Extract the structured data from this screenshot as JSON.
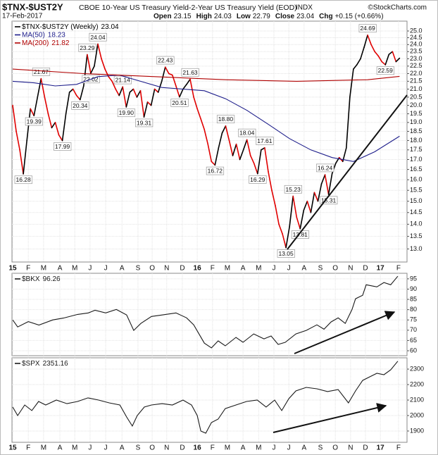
{
  "chart_data": [
    {
      "type": "line",
      "title": "$TNX-$UST2Y",
      "subtitle": "CBOE 10-Year US Treasury Yield-2-Year US Treasury Yield (EOD)",
      "exchange": "INDX",
      "source": "©StockCharts.com",
      "date": "17-Feb-2017",
      "quote": [
        {
          "label": "Open",
          "value": 23.15
        },
        {
          "label": "High",
          "value": 24.03
        },
        {
          "label": "Low",
          "value": 22.79
        },
        {
          "label": "Close",
          "value": 23.04
        },
        {
          "label": "Chg",
          "value": "+0.15 (+0.66%)"
        }
      ],
      "xlim": [
        -0.2,
        111.1
      ],
      "xticks": [
        {
          "value": 0,
          "label": "15"
        },
        {
          "value": 4.4,
          "label": "F"
        },
        {
          "value": 8.7,
          "label": "M"
        },
        {
          "value": 13.3,
          "label": "A"
        },
        {
          "value": 17.5,
          "label": "M"
        },
        {
          "value": 21.8,
          "label": "J"
        },
        {
          "value": 26.2,
          "label": "J"
        },
        {
          "value": 30.8,
          "label": "A"
        },
        {
          "value": 35.3,
          "label": "S"
        },
        {
          "value": 39.3,
          "label": "O"
        },
        {
          "value": 43.4,
          "label": "N"
        },
        {
          "value": 47.8,
          "label": "D"
        },
        {
          "value": 52.0,
          "label": "16"
        },
        {
          "value": 56.3,
          "label": "F"
        },
        {
          "value": 60.5,
          "label": "M"
        },
        {
          "value": 64.9,
          "label": "A"
        },
        {
          "value": 69.3,
          "label": "M"
        },
        {
          "value": 73.6,
          "label": "J"
        },
        {
          "value": 77.8,
          "label": "J"
        },
        {
          "value": 82.1,
          "label": "A"
        },
        {
          "value": 86.7,
          "label": "S"
        },
        {
          "value": 90.9,
          "label": "O"
        },
        {
          "value": 95.2,
          "label": "N"
        },
        {
          "value": 99.4,
          "label": "D"
        },
        {
          "value": 103.6,
          "label": "17"
        },
        {
          "value": 108.7,
          "label": "F"
        }
      ],
      "ylog": true,
      "ylim": [
        12.5,
        25.75
      ],
      "yticks": [
        {
          "value": 13,
          "label": "13.0"
        },
        13.5,
        {
          "value": 14,
          "label": "14.0"
        },
        14.5,
        {
          "value": 15,
          "label": "15.0"
        },
        15.5,
        {
          "value": 16,
          "label": "16.0"
        },
        16.5,
        {
          "value": 17,
          "label": "17.0"
        },
        17.5,
        {
          "value": 18,
          "label": "18.0"
        },
        18.5,
        {
          "value": 19,
          "label": "19.0"
        },
        19.5,
        {
          "value": 20,
          "label": "20.0"
        },
        20.5,
        {
          "value": 21,
          "label": "21.0"
        },
        21.5,
        {
          "value": 22,
          "label": "22.0"
        },
        22.5,
        {
          "value": 23,
          "label": "23.0"
        },
        23.5,
        {
          "value": 24,
          "label": "24.0"
        },
        24.5,
        {
          "value": 25,
          "label": "25.0"
        }
      ],
      "grid": true,
      "legend": "top-left",
      "series": [
        {
          "name": "$TNX-$UST2Y (Weekly)",
          "color": "#000000",
          "up_color": "#000000",
          "down_color": "#e00000",
          "values": [
            20.0,
            18.5,
            17.5,
            16.28,
            18.0,
            19.8,
            19.39,
            20.5,
            21.67,
            20.5,
            19.5,
            18.7,
            19.0,
            18.3,
            17.99,
            19.5,
            20.8,
            21.0,
            20.6,
            20.34,
            21.2,
            23.29,
            22.02,
            22.5,
            24.04,
            23.0,
            22.3,
            21.8,
            21.5,
            21.0,
            20.6,
            21.14,
            19.9,
            20.8,
            21.0,
            20.5,
            20.9,
            19.31,
            20.2,
            20.0,
            21.0,
            20.8,
            21.5,
            22.43,
            22.0,
            21.9,
            21.2,
            20.51,
            21.0,
            21.3,
            21.63,
            20.5,
            19.8,
            19.2,
            18.6,
            17.8,
            16.9,
            16.72,
            17.6,
            18.4,
            18.8,
            18.0,
            17.2,
            17.8,
            17.0,
            17.5,
            18.04,
            17.2,
            16.8,
            16.29,
            17.5,
            17.61,
            16.4,
            15.5,
            14.8,
            14.0,
            13.6,
            13.05,
            13.9,
            15.23,
            14.3,
            13.81,
            14.6,
            15.0,
            14.5,
            15.4,
            15.0,
            15.8,
            16.24,
            15.31,
            16.3,
            16.8,
            17.1,
            16.9,
            17.6,
            20.5,
            22.3,
            22.6,
            23.0,
            23.8,
            24.69,
            24.0,
            23.5,
            23.2,
            22.8,
            22.59,
            23.3,
            23.5,
            22.8,
            23.04
          ],
          "value_labels": [
            null,
            null,
            null,
            "16.28",
            null,
            null,
            "19.39",
            null,
            "21.67",
            null,
            null,
            null,
            null,
            null,
            "17.99",
            null,
            null,
            null,
            null,
            "20.34",
            null,
            "23.29",
            "22.02",
            null,
            "24.04",
            null,
            null,
            null,
            null,
            null,
            null,
            "21.14",
            "19.90",
            null,
            null,
            null,
            null,
            "19.31",
            null,
            null,
            null,
            null,
            null,
            "22.43",
            null,
            null,
            null,
            "20.51",
            null,
            null,
            "21.63",
            null,
            null,
            null,
            null,
            null,
            null,
            "16.72",
            null,
            null,
            "18.80",
            null,
            null,
            null,
            null,
            null,
            "18.04",
            null,
            null,
            "16.29",
            null,
            "17.61",
            null,
            null,
            null,
            null,
            null,
            "13.05",
            null,
            "15.23",
            null,
            "13.81",
            null,
            null,
            null,
            null,
            null,
            null,
            "16.24",
            "15.31",
            null,
            null,
            null,
            null,
            null,
            null,
            null,
            null,
            null,
            null,
            "24.69",
            null,
            null,
            null,
            null,
            "22.59",
            null,
            null,
            null,
            null
          ]
        },
        {
          "name": "MA(50)",
          "color": "#1c1c8a",
          "x": [
            0,
            6,
            12,
            18,
            24,
            30,
            36,
            42,
            48,
            54,
            60,
            66,
            72,
            78,
            84,
            90,
            96,
            102,
            109
          ],
          "values": [
            21.5,
            21.4,
            21.2,
            21.3,
            21.8,
            21.9,
            21.5,
            21.1,
            21.0,
            20.9,
            20.4,
            19.7,
            18.9,
            18.1,
            17.5,
            17.1,
            16.9,
            17.4,
            18.23
          ]
        },
        {
          "name": "MA(200)",
          "color": "#b00000",
          "x": [
            0,
            20,
            40,
            60,
            80,
            100,
            109
          ],
          "values": [
            22.3,
            22.0,
            21.8,
            21.6,
            21.5,
            21.6,
            21.82
          ]
        }
      ]
    },
    {
      "type": "line",
      "xlim": [
        -0.2,
        111.1
      ],
      "ylim": [
        57.6,
        97.7
      ],
      "yticks": [
        60,
        65,
        70,
        75,
        80,
        85,
        90,
        95
      ],
      "grid": true,
      "legend": "top-left",
      "series": [
        {
          "name": "$BKX",
          "color": "#1a1a1a",
          "x": [
            0,
            1.4,
            4.4,
            7.4,
            11.3,
            14.3,
            18.3,
            21.3,
            23.2,
            26.2,
            29.2,
            32.1,
            34.1,
            36.1,
            39.1,
            42.1,
            46.0,
            49.0,
            51.0,
            54.0,
            56.0,
            57.9,
            59.9,
            62.9,
            64.9,
            67.9,
            70.8,
            72.8,
            74.8,
            76.8,
            79.8,
            82.7,
            85.7,
            87.7,
            89.7,
            91.7,
            93.7,
            95.6,
            96.6,
            98.6,
            99.6,
            102.6,
            104.6,
            106.5,
            108.5
          ],
          "values": [
            75,
            71.6,
            74.2,
            72.5,
            75,
            75.9,
            77.7,
            78.4,
            79.7,
            78.4,
            80.1,
            77.4,
            69.9,
            73.3,
            76.7,
            77.4,
            78.4,
            76.0,
            72.6,
            63.7,
            61.4,
            64.8,
            62.4,
            66.5,
            64.1,
            68.2,
            65.8,
            67.2,
            63.1,
            64.1,
            68.2,
            69.9,
            72.6,
            70.5,
            74.0,
            76.0,
            73.3,
            80.1,
            85.3,
            87.0,
            92.1,
            91.1,
            93.2,
            92.1,
            96.26
          ]
        }
      ]
    },
    {
      "type": "line",
      "xlim": [
        -0.2,
        111.1
      ],
      "ylim": [
        1827,
        2373
      ],
      "yticks": [
        1900,
        2000,
        2100,
        2200,
        2300
      ],
      "grid": true,
      "legend": "top-left",
      "series": [
        {
          "name": "$SPX",
          "color": "#1a1a1a",
          "x": [
            0,
            1.4,
            3.4,
            5.4,
            7.3,
            9.3,
            12.3,
            15.3,
            18.3,
            21.2,
            24.2,
            27.2,
            30.2,
            32.1,
            33.7,
            35.1,
            37.1,
            39.1,
            42.1,
            45.0,
            48.0,
            50.4,
            52.0,
            53.0,
            54.4,
            56.0,
            57.9,
            59.9,
            62.9,
            65.9,
            68.9,
            71.4,
            73.8,
            75.8,
            77.8,
            79.8,
            82.7,
            85.7,
            88.7,
            91.7,
            94.6,
            96.6,
            98.6,
            100.6,
            102.6,
            104.6,
            106.5,
            108.5
          ],
          "values": [
            2055,
            2000,
            2068,
            2032,
            2091,
            2068,
            2100,
            2077,
            2091,
            2114,
            2100,
            2082,
            2068,
            1991,
            1932,
            2000,
            2055,
            2068,
            2077,
            2068,
            2100,
            2068,
            2000,
            1900,
            1886,
            1955,
            1977,
            2045,
            2068,
            2091,
            2100,
            2055,
            2100,
            2032,
            2109,
            2159,
            2182,
            2173,
            2155,
            2168,
            2082,
            2159,
            2227,
            2250,
            2273,
            2264,
            2295,
            2351.16
          ]
        }
      ]
    }
  ]
}
